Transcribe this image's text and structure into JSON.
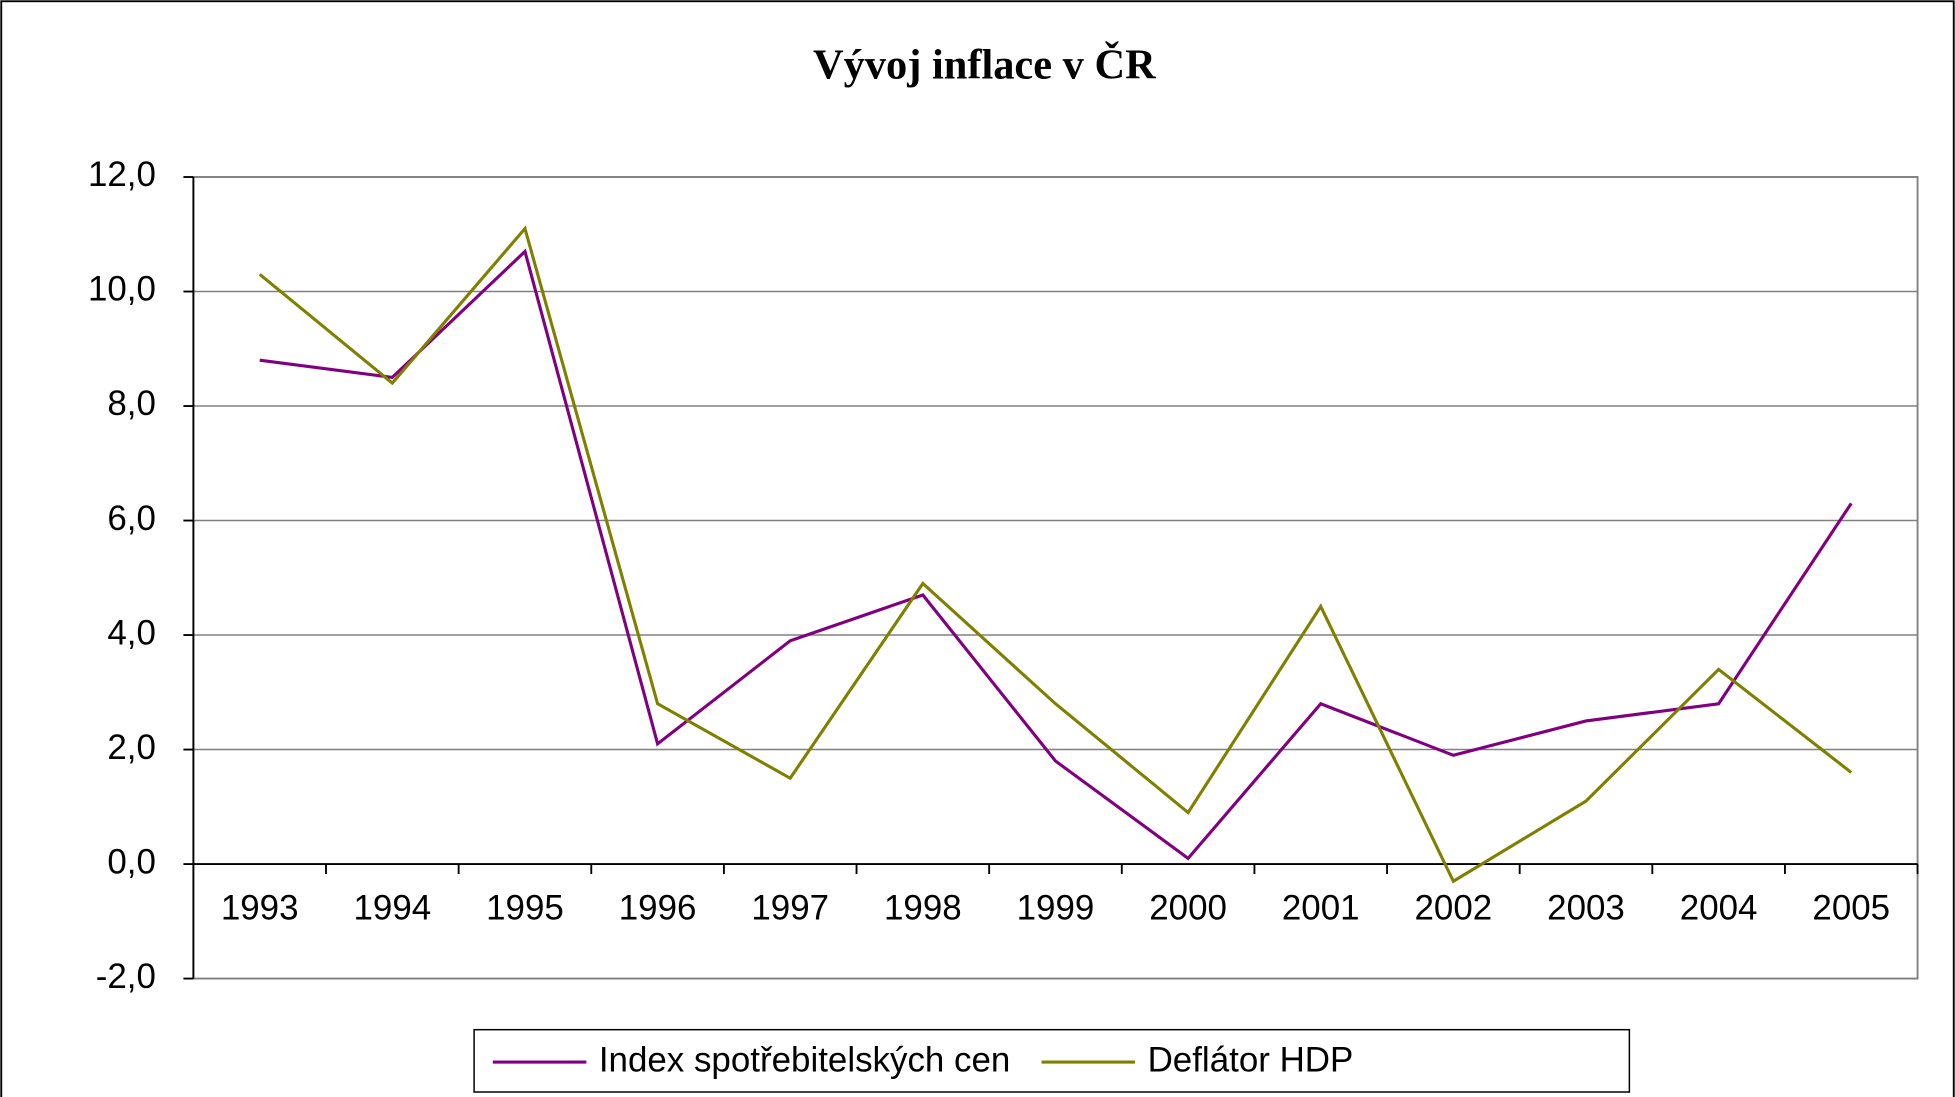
{
  "chart_data": {
    "type": "line",
    "title": "Vývoj inflace v ČR",
    "categories": [
      "1993",
      "1994",
      "1995",
      "1996",
      "1997",
      "1998",
      "1999",
      "2000",
      "2001",
      "2002",
      "2003",
      "2004",
      "2005"
    ],
    "series": [
      {
        "name": "Index spotřebitelských cen",
        "color": "#800080",
        "values": [
          8.8,
          8.5,
          10.7,
          2.1,
          3.9,
          4.7,
          1.8,
          0.1,
          2.8,
          1.9,
          2.5,
          2.8,
          6.3
        ]
      },
      {
        "name": "Deflátor HDP",
        "color": "#808000",
        "values": [
          10.3,
          8.4,
          11.1,
          2.8,
          1.5,
          4.9,
          2.8,
          0.9,
          4.5,
          -0.3,
          1.1,
          3.4,
          1.6
        ]
      }
    ],
    "ylim": [
      -2,
      12
    ],
    "yticks": [
      {
        "value": -2,
        "label": "-2,0"
      },
      {
        "value": 0,
        "label": "0,0"
      },
      {
        "value": 2,
        "label": "2,0"
      },
      {
        "value": 4,
        "label": "4,0"
      },
      {
        "value": 6,
        "label": "6,0"
      },
      {
        "value": 8,
        "label": "8,0"
      },
      {
        "value": 10,
        "label": "10,0"
      },
      {
        "value": 12,
        "label": "12,0"
      }
    ],
    "grid": true,
    "legend": "bottom"
  }
}
